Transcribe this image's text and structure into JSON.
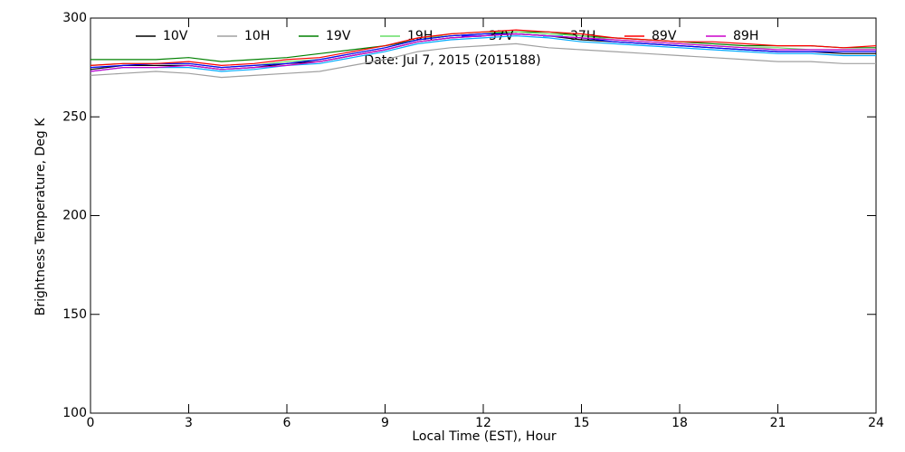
{
  "chart_data": {
    "type": "line",
    "annotation": "Date: Jul  7, 2015 (2015188)",
    "xlabel": "Local Time (EST), Hour",
    "ylabel": "Brightness Temperature, Deg K",
    "x": [
      0,
      1,
      2,
      3,
      4,
      5,
      6,
      7,
      8,
      9,
      10,
      11,
      12,
      13,
      14,
      15,
      16,
      17,
      18,
      19,
      20,
      21,
      22,
      23,
      24
    ],
    "xlim": [
      0,
      24
    ],
    "xticks": [
      0,
      3,
      6,
      9,
      12,
      15,
      18,
      21,
      24
    ],
    "ylim": [
      100,
      300
    ],
    "yticks": [
      100,
      150,
      200,
      250,
      300
    ],
    "series": [
      {
        "name": "10V",
        "color": "#000000",
        "values": [
          274,
          276,
          276,
          276,
          274,
          275,
          277,
          278,
          281,
          284,
          288,
          290,
          291,
          292,
          291,
          289,
          288,
          287,
          286,
          285,
          284,
          283,
          283,
          282,
          282
        ]
      },
      {
        "name": "10H",
        "color": "#a0a0a0",
        "values": [
          271,
          272,
          273,
          272,
          270,
          271,
          272,
          273,
          276,
          279,
          283,
          285,
          286,
          287,
          285,
          284,
          283,
          282,
          281,
          280,
          279,
          278,
          278,
          277,
          277
        ]
      },
      {
        "name": "19V",
        "color": "#008000",
        "values": [
          279,
          279,
          279,
          280,
          278,
          279,
          280,
          282,
          284,
          286,
          289,
          291,
          292,
          293,
          293,
          291,
          290,
          289,
          288,
          287,
          286,
          286,
          286,
          285,
          285
        ]
      },
      {
        "name": "19H",
        "color": "#66dd66",
        "values": [
          276,
          277,
          277,
          277,
          275,
          276,
          278,
          279,
          282,
          285,
          289,
          292,
          293,
          293,
          292,
          291,
          289,
          288,
          287,
          286,
          285,
          285,
          284,
          284,
          284
        ]
      },
      {
        "name": "37V",
        "color": "#0000ff",
        "values": [
          275,
          276,
          277,
          277,
          275,
          276,
          277,
          279,
          282,
          285,
          289,
          291,
          292,
          292,
          291,
          290,
          288,
          287,
          286,
          285,
          284,
          283,
          283,
          283,
          283
        ]
      },
      {
        "name": "37H",
        "color": "#00aaff",
        "values": [
          273,
          275,
          275,
          275,
          273,
          274,
          276,
          277,
          280,
          283,
          287,
          289,
          290,
          291,
          290,
          288,
          287,
          286,
          285,
          284,
          283,
          282,
          282,
          281,
          281
        ]
      },
      {
        "name": "89V",
        "color": "#ff0000",
        "values": [
          276,
          277,
          277,
          278,
          276,
          277,
          279,
          280,
          283,
          286,
          290,
          292,
          293,
          294,
          293,
          292,
          290,
          289,
          288,
          288,
          287,
          286,
          286,
          285,
          286
        ]
      },
      {
        "name": "89H",
        "color": "#cc00cc",
        "values": [
          273,
          275,
          275,
          276,
          274,
          275,
          276,
          278,
          281,
          284,
          288,
          290,
          291,
          292,
          291,
          290,
          289,
          288,
          287,
          286,
          285,
          284,
          284,
          284,
          284
        ]
      }
    ]
  }
}
